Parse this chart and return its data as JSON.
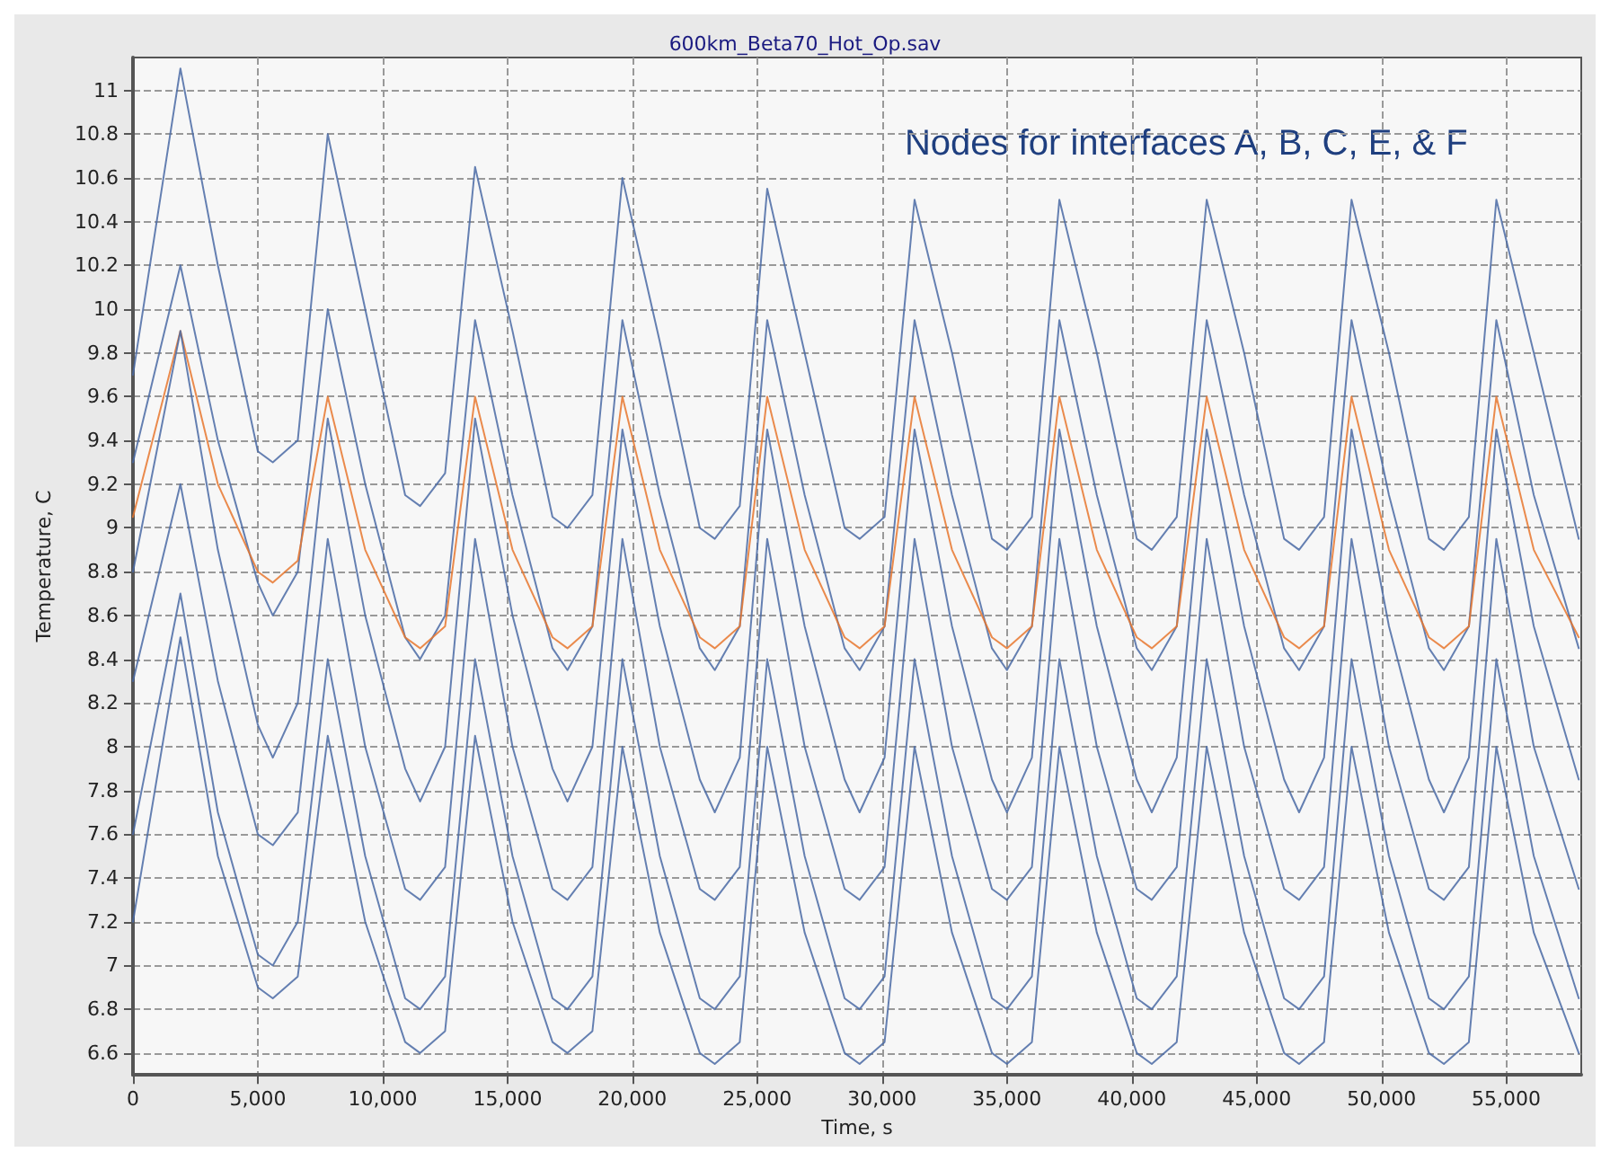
{
  "chart_data": {
    "type": "line",
    "title": "600km_Beta70_Hot_Op.sav",
    "xlabel": "Time, s",
    "ylabel": "Temperature, C",
    "annotations": [
      "Nodes for interfaces A, B, C, E, & F"
    ],
    "x": [
      0,
      1900,
      3400,
      5000,
      5600,
      6600,
      7800,
      9300,
      10900,
      11500,
      12500,
      13700,
      15200,
      16800,
      17400,
      18400,
      19600,
      21100,
      22700,
      23300,
      24300,
      25400,
      26900,
      28500,
      29100,
      30100,
      31300,
      32800,
      34400,
      35000,
      36000,
      37100,
      38600,
      40200,
      40800,
      41800,
      43000,
      44500,
      46100,
      46700,
      47700,
      48800,
      50300,
      51900,
      52500,
      53500,
      54600,
      56100,
      57900
    ],
    "series": [
      {
        "color": "#4a6aa5",
        "values": [
          9.7,
          11.1,
          10.2,
          9.35,
          9.3,
          9.4,
          10.8,
          10.0,
          9.15,
          9.1,
          9.25,
          10.65,
          9.9,
          9.05,
          9.0,
          9.15,
          10.6,
          9.85,
          9.0,
          8.95,
          9.1,
          10.55,
          9.8,
          9.0,
          8.95,
          9.05,
          10.5,
          9.8,
          8.95,
          8.9,
          9.05,
          10.5,
          9.8,
          8.95,
          8.9,
          9.05,
          10.5,
          9.8,
          8.95,
          8.9,
          9.05,
          10.5,
          9.8,
          8.95,
          8.9,
          9.05,
          10.5,
          9.8,
          8.95
        ]
      },
      {
        "color": "#4a6aa5",
        "values": [
          9.3,
          10.2,
          9.4,
          8.75,
          8.6,
          8.8,
          10.0,
          9.2,
          8.5,
          8.4,
          8.6,
          9.95,
          9.15,
          8.45,
          8.35,
          8.55,
          9.95,
          9.15,
          8.45,
          8.35,
          8.55,
          9.95,
          9.15,
          8.45,
          8.35,
          8.55,
          9.95,
          9.15,
          8.45,
          8.35,
          8.55,
          9.95,
          9.15,
          8.45,
          8.35,
          8.55,
          9.95,
          9.15,
          8.45,
          8.35,
          8.55,
          9.95,
          9.15,
          8.45,
          8.35,
          8.55,
          9.95,
          9.15,
          8.45
        ]
      },
      {
        "color": "#e8772e",
        "values": [
          9.05,
          9.9,
          9.2,
          8.8,
          8.75,
          8.85,
          9.6,
          8.9,
          8.5,
          8.45,
          8.55,
          9.6,
          8.9,
          8.5,
          8.45,
          8.55,
          9.6,
          8.9,
          8.5,
          8.45,
          8.55,
          9.6,
          8.9,
          8.5,
          8.45,
          8.55,
          9.6,
          8.9,
          8.5,
          8.45,
          8.55,
          9.6,
          8.9,
          8.5,
          8.45,
          8.55,
          9.6,
          8.9,
          8.5,
          8.45,
          8.55,
          9.6,
          8.9,
          8.5,
          8.45,
          8.55,
          9.6,
          8.9,
          8.5
        ]
      },
      {
        "color": "#4a6aa5",
        "values": [
          8.8,
          9.9,
          8.9,
          8.1,
          7.95,
          8.2,
          9.5,
          8.6,
          7.9,
          7.75,
          8.0,
          9.5,
          8.6,
          7.9,
          7.75,
          8.0,
          9.45,
          8.55,
          7.85,
          7.7,
          7.95,
          9.45,
          8.55,
          7.85,
          7.7,
          7.95,
          9.45,
          8.55,
          7.85,
          7.7,
          7.95,
          9.45,
          8.55,
          7.85,
          7.7,
          7.95,
          9.45,
          8.55,
          7.85,
          7.7,
          7.95,
          9.45,
          8.55,
          7.85,
          7.7,
          7.95,
          9.45,
          8.55,
          7.85
        ]
      },
      {
        "color": "#4a6aa5",
        "values": [
          8.3,
          9.2,
          8.3,
          7.6,
          7.55,
          7.7,
          8.95,
          8.0,
          7.35,
          7.3,
          7.45,
          8.95,
          8.0,
          7.35,
          7.3,
          7.45,
          8.95,
          8.0,
          7.35,
          7.3,
          7.45,
          8.95,
          8.0,
          7.35,
          7.3,
          7.45,
          8.95,
          8.0,
          7.35,
          7.3,
          7.45,
          8.95,
          8.0,
          7.35,
          7.3,
          7.45,
          8.95,
          8.0,
          7.35,
          7.3,
          7.45,
          8.95,
          8.0,
          7.35,
          7.3,
          7.45,
          8.95,
          8.0,
          7.35
        ]
      },
      {
        "color": "#4a6aa5",
        "values": [
          7.6,
          8.7,
          7.7,
          7.05,
          7.0,
          7.2,
          8.4,
          7.5,
          6.85,
          6.8,
          6.95,
          8.4,
          7.5,
          6.85,
          6.8,
          6.95,
          8.4,
          7.5,
          6.85,
          6.8,
          6.95,
          8.4,
          7.5,
          6.85,
          6.8,
          6.95,
          8.4,
          7.5,
          6.85,
          6.8,
          6.95,
          8.4,
          7.5,
          6.85,
          6.8,
          6.95,
          8.4,
          7.5,
          6.85,
          6.8,
          6.95,
          8.4,
          7.5,
          6.85,
          6.8,
          6.95,
          8.4,
          7.5,
          6.85
        ]
      },
      {
        "color": "#4a6aa5",
        "values": [
          7.2,
          8.5,
          7.5,
          6.9,
          6.85,
          6.95,
          8.05,
          7.2,
          6.65,
          6.6,
          6.7,
          8.05,
          7.2,
          6.65,
          6.6,
          6.7,
          8.0,
          7.15,
          6.6,
          6.55,
          6.65,
          8.0,
          7.15,
          6.6,
          6.55,
          6.65,
          8.0,
          7.15,
          6.6,
          6.55,
          6.65,
          8.0,
          7.15,
          6.6,
          6.55,
          6.65,
          8.0,
          7.15,
          6.6,
          6.55,
          6.65,
          8.0,
          7.15,
          6.6,
          6.55,
          6.65,
          8.0,
          7.15,
          6.6
        ]
      }
    ],
    "xlim": [
      0,
      58000
    ],
    "xticks": [
      {
        "value": 0,
        "label": "0"
      },
      {
        "value": 5000,
        "label": "5,000"
      },
      {
        "value": 10000,
        "label": "10,000"
      },
      {
        "value": 15000,
        "label": "15,000"
      },
      {
        "value": 20000,
        "label": "20,000"
      },
      {
        "value": 25000,
        "label": "25,000"
      },
      {
        "value": 30000,
        "label": "30,000"
      },
      {
        "value": 35000,
        "label": "35,000"
      },
      {
        "value": 40000,
        "label": "40,000"
      },
      {
        "value": 45000,
        "label": "45,000"
      },
      {
        "value": 50000,
        "label": "50,000"
      },
      {
        "value": 55000,
        "label": "55,000"
      }
    ],
    "ylim": [
      6.5,
      11.15
    ],
    "yticks": [
      6.6,
      6.8,
      7,
      7.2,
      7.4,
      7.6,
      7.8,
      8,
      8.2,
      8.4,
      8.6,
      8.8,
      9,
      9.2,
      9.4,
      9.6,
      9.8,
      10,
      10.2,
      10.4,
      10.6,
      10.8,
      11
    ],
    "grid": true,
    "line_style": "solid"
  }
}
